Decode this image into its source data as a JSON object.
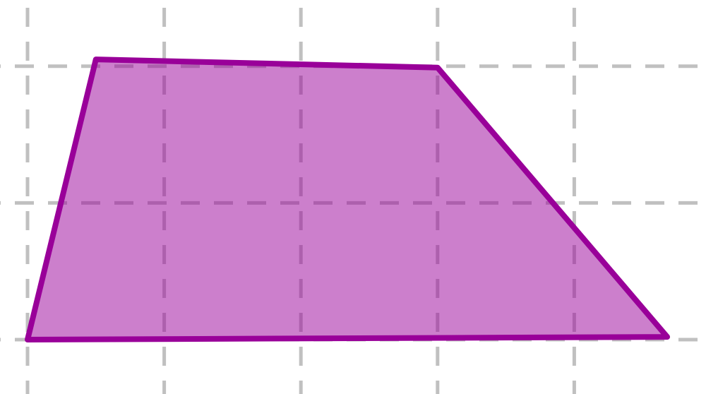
{
  "diagram": {
    "shape": "quadrilateral",
    "grid": {
      "visible": true,
      "style": "dashed",
      "color": "#c0c0c0",
      "columns": 5,
      "rows": 3
    },
    "polygon": {
      "vertices_grid_units": [
        [
          0,
          0
        ],
        [
          0.5,
          2.05
        ],
        [
          3,
          1.99
        ],
        [
          4.68,
          0.02
        ]
      ],
      "fill_color": "#990099",
      "fill_opacity": 0.5,
      "stroke_color": "#990099"
    }
  }
}
